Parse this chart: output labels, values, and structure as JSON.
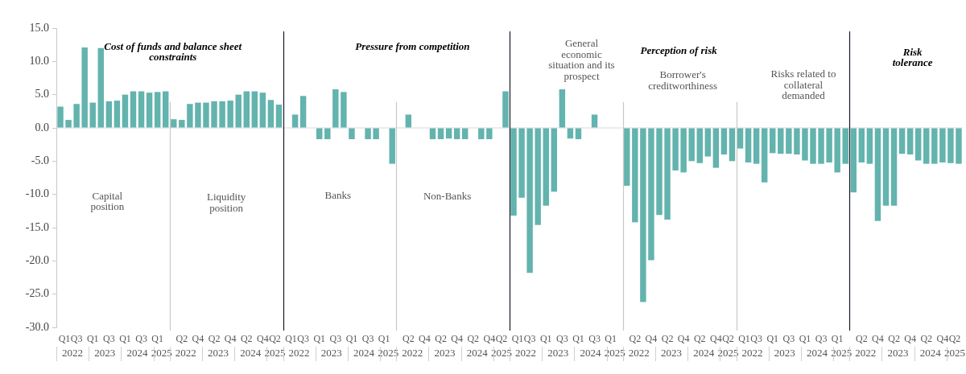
{
  "chart_data": {
    "type": "bar",
    "categories": [
      "Q1",
      null,
      "Q3",
      null,
      "Q1",
      null,
      "Q3",
      null,
      "Q1",
      null,
      "Q3",
      null,
      "Q1",
      null,
      null,
      "Q2",
      null,
      "Q4",
      null,
      "Q2",
      null,
      "Q4",
      null,
      "Q2",
      null,
      "Q4",
      null,
      "Q2",
      "Q1",
      null,
      "Q3",
      null,
      "Q1",
      null,
      "Q3",
      null,
      "Q1",
      null,
      "Q3",
      null,
      "Q1",
      null,
      null,
      "Q2",
      null,
      "Q4",
      null,
      "Q2",
      null,
      "Q4",
      null,
      "Q2",
      null,
      "Q4",
      null,
      "Q2",
      "Q1",
      null,
      "Q3",
      null,
      "Q1",
      null,
      "Q3",
      null,
      "Q1",
      null,
      "Q3",
      null,
      "Q1",
      null,
      null,
      "Q2",
      null,
      "Q4",
      null,
      "Q2",
      null,
      "Q4",
      null,
      "Q2",
      null,
      "Q4",
      null,
      "Q2",
      "Q1",
      null,
      "Q3",
      null,
      "Q1",
      null,
      "Q3",
      null,
      "Q1",
      null,
      "Q3",
      null,
      "Q1",
      null,
      null,
      "Q2",
      null,
      "Q4",
      null,
      "Q2",
      null,
      "Q4",
      null,
      "Q2",
      null,
      "Q4",
      null,
      "Q2"
    ],
    "series": [
      {
        "color": "#63b3ae",
        "values": [
          3.2,
          1.2,
          3.6,
          12.1,
          3.8,
          12.0,
          4.0,
          4.1,
          5.0,
          5.5,
          5.5,
          5.3,
          5.4,
          5.5,
          1.3,
          1.2,
          3.6,
          3.8,
          3.8,
          4.0,
          4.0,
          4.1,
          5.0,
          5.5,
          5.5,
          5.3,
          4.2,
          3.5,
          0,
          2.0,
          4.8,
          0,
          -1.7,
          -1.7,
          5.8,
          5.4,
          -1.7,
          0,
          -1.7,
          -1.7,
          0,
          -5.4,
          0,
          2.0,
          0,
          0,
          -1.7,
          -1.7,
          -1.6,
          -1.7,
          -1.7,
          0,
          -1.7,
          -1.7,
          0,
          5.5,
          -13.2,
          -10.5,
          -21.8,
          -14.6,
          -11.7,
          -9.6,
          5.8,
          -1.6,
          -1.7,
          0,
          2.0,
          0,
          0,
          0,
          -8.7,
          -14.2,
          -26.2,
          -19.9,
          -13.1,
          -13.8,
          -6.4,
          -6.7,
          -5.0,
          -5.3,
          -4.3,
          -6.0,
          -4.0,
          -5.0,
          -3.1,
          -5.2,
          -5.4,
          -8.2,
          -3.8,
          -3.9,
          -3.9,
          -4.0,
          -4.9,
          -5.4,
          -5.4,
          -5.2,
          -6.7,
          -5.4,
          -9.7,
          -5.2,
          -5.4,
          -14.0,
          -11.7,
          -11.7,
          -3.9,
          -4.0,
          -4.9,
          -5.4,
          -5.4,
          -5.2,
          -5.3,
          -5.4
        ]
      }
    ],
    "ylim": [
      -30,
      15
    ],
    "yticks": [
      {
        "value": -30,
        "label": "-30.0"
      },
      {
        "value": -25,
        "label": "-25.0"
      },
      {
        "value": -20,
        "label": "-20.0"
      },
      {
        "value": -15,
        "label": "-15.0"
      },
      {
        "value": -10,
        "label": "-10.0"
      },
      {
        "value": -5,
        "label": "-5.0"
      },
      {
        "value": 0,
        "label": "0.0"
      },
      {
        "value": 5,
        "label": "5.0"
      },
      {
        "value": 10,
        "label": "10.0"
      },
      {
        "value": 15,
        "label": "15.0"
      }
    ],
    "grid": false,
    "legend": false,
    "annotations": [
      "Cost of funds and balance sheet constraints",
      "Pressure from competition",
      "Perception of risk",
      "Risk tolerance",
      "Capital position",
      "Liquidity position",
      "Banks",
      "Non-Banks",
      "General economic situation and its prospect",
      "Borrower's creditworthiness",
      "Risks related to collateral demanded",
      "2022",
      "2023",
      "2024",
      "2025",
      "2022",
      "2023",
      "2024",
      "2025",
      "2022",
      "2023",
      "2024",
      "2025",
      "2022",
      "2023",
      "2024",
      "2025",
      "2022",
      "2023",
      "2024",
      "2025",
      "2022",
      "2023",
      "2024",
      "2025",
      "2022",
      "2023",
      "2024",
      "2025",
      "2022",
      "2023",
      "2024",
      "2025"
    ]
  }
}
